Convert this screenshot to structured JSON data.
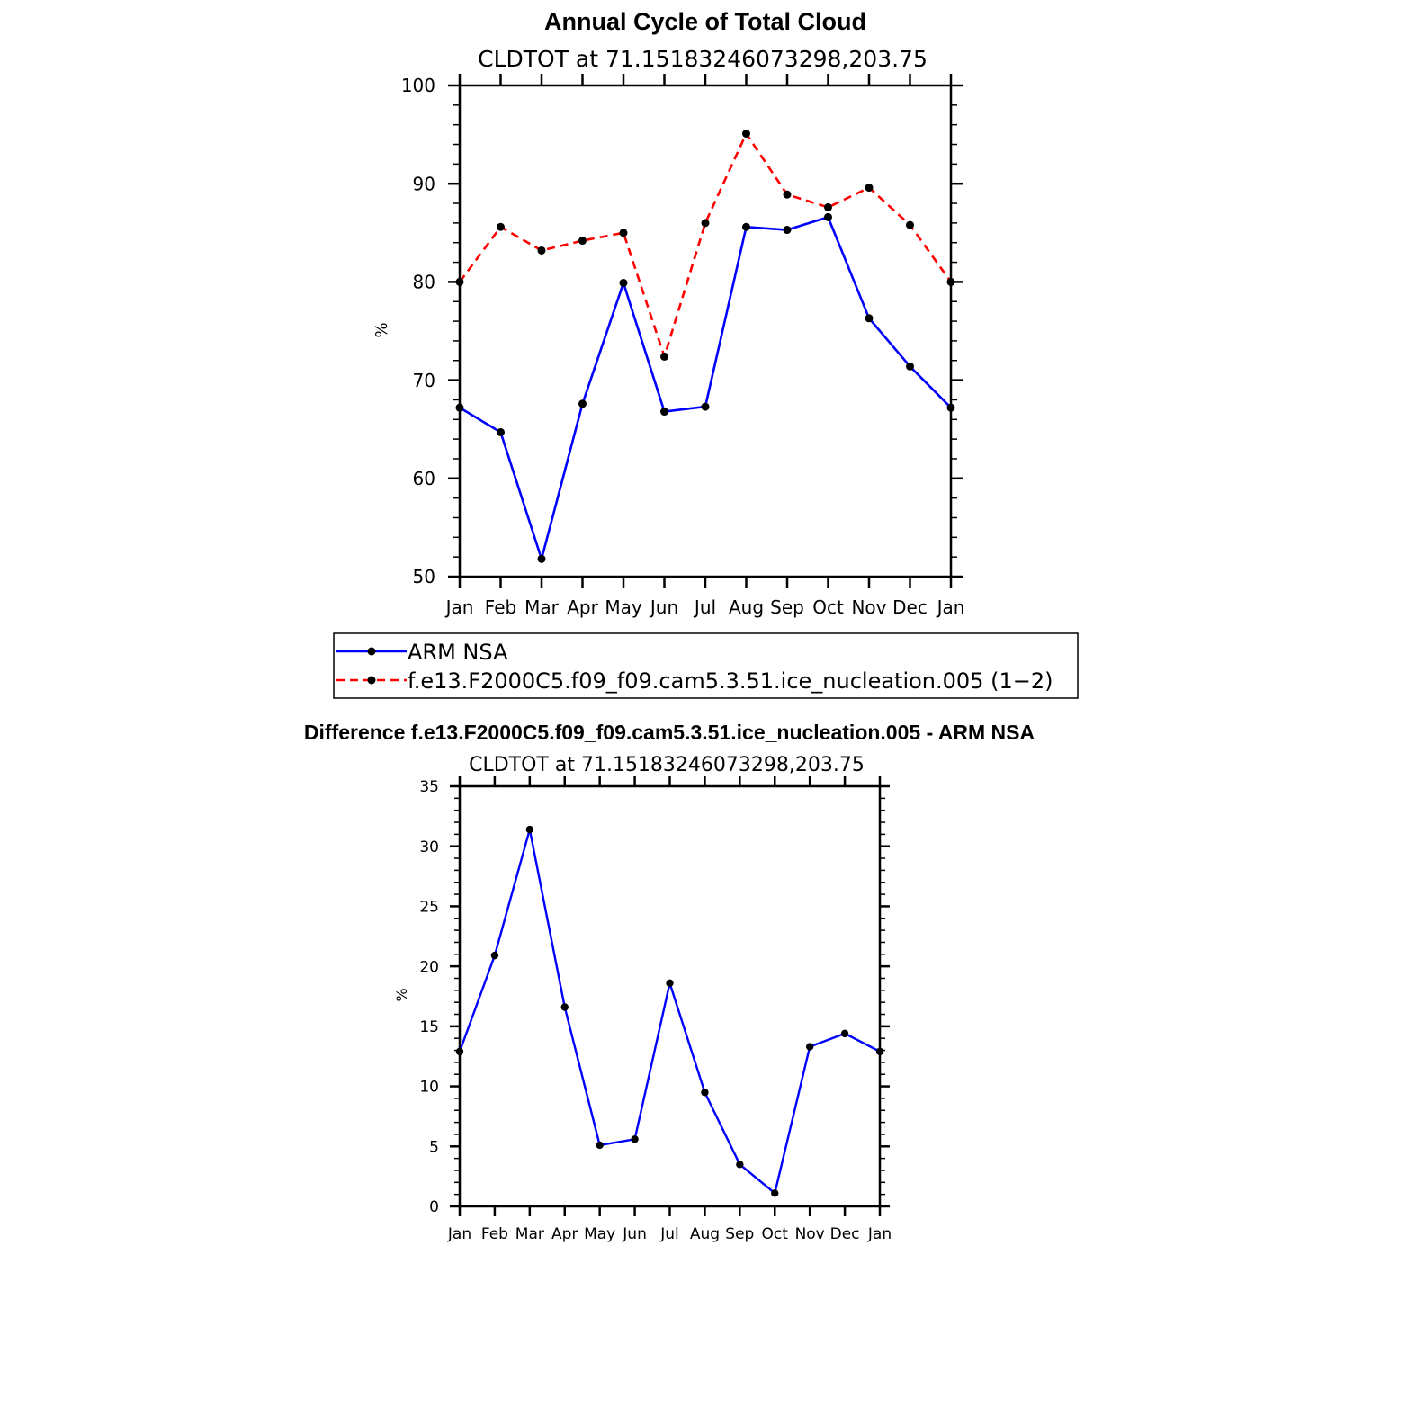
{
  "chart_data": [
    {
      "type": "line",
      "title": "Annual Cycle of Total Cloud",
      "subtitle": "CLDTOT at 71.15183246073298,203.75",
      "xlabel": "",
      "ylabel": "%",
      "categories": [
        "Jan",
        "Feb",
        "Mar",
        "Apr",
        "May",
        "Jun",
        "Jul",
        "Aug",
        "Sep",
        "Oct",
        "Nov",
        "Dec",
        "Jan"
      ],
      "ylim": [
        50,
        100
      ],
      "yticks": [
        50,
        60,
        70,
        80,
        90,
        100
      ],
      "grid": false,
      "legend_position": "below",
      "series": [
        {
          "name": "ARM NSA",
          "color": "#0000ff",
          "style": "solid",
          "values": [
            67.2,
            64.7,
            51.8,
            67.6,
            79.9,
            66.8,
            67.3,
            85.6,
            85.3,
            86.6,
            76.3,
            71.4,
            67.2
          ]
        },
        {
          "name": "f.e13.F2000C5.f09_f09.cam5.3.51.ice_nucleation.005 (1−2)",
          "color": "#ff0000",
          "style": "dashed",
          "values": [
            80.0,
            85.6,
            83.2,
            84.2,
            85.0,
            72.4,
            86.0,
            95.1,
            88.9,
            87.6,
            89.6,
            85.8,
            80.0
          ]
        }
      ]
    },
    {
      "type": "line",
      "title": "Difference f.e13.F2000C5.f09_f09.cam5.3.51.ice_nucleation.005 - ARM NSA",
      "subtitle": "CLDTOT at 71.15183246073298,203.75",
      "xlabel": "",
      "ylabel": "%",
      "categories": [
        "Jan",
        "Feb",
        "Mar",
        "Apr",
        "May",
        "Jun",
        "Jul",
        "Aug",
        "Sep",
        "Oct",
        "Nov",
        "Dec",
        "Jan"
      ],
      "ylim": [
        0,
        35
      ],
      "yticks": [
        0,
        5,
        10,
        15,
        20,
        25,
        30,
        35
      ],
      "grid": false,
      "series": [
        {
          "name": "Difference",
          "color": "#0000ff",
          "style": "solid",
          "values": [
            12.9,
            20.9,
            31.4,
            16.6,
            5.1,
            5.6,
            18.6,
            9.5,
            3.5,
            1.1,
            13.3,
            14.4,
            12.9
          ]
        }
      ]
    }
  ]
}
